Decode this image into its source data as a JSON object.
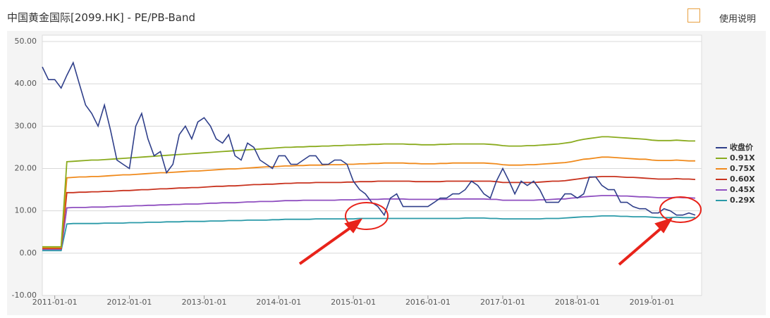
{
  "header": {
    "title": "中国黄金国际[2099.HK] - PE/PB-Band",
    "help": "使用说明"
  },
  "chart_data": {
    "type": "line",
    "x": [
      "2010-11-01",
      "2010-12-01",
      "2011-01-01",
      "2011-02-01",
      "2011-03-01",
      "2011-04-01",
      "2011-05-01",
      "2011-06-01",
      "2011-07-01",
      "2011-08-01",
      "2011-09-01",
      "2011-10-01",
      "2011-11-01",
      "2011-12-01",
      "2012-01-01",
      "2012-02-01",
      "2012-03-01",
      "2012-04-01",
      "2012-05-01",
      "2012-06-01",
      "2012-07-01",
      "2012-08-01",
      "2012-09-01",
      "2012-10-01",
      "2012-11-01",
      "2012-12-01",
      "2013-01-01",
      "2013-02-01",
      "2013-03-01",
      "2013-04-01",
      "2013-05-01",
      "2013-06-01",
      "2013-07-01",
      "2013-08-01",
      "2013-09-01",
      "2013-10-01",
      "2013-11-01",
      "2013-12-01",
      "2014-01-01",
      "2014-02-01",
      "2014-03-01",
      "2014-04-01",
      "2014-05-01",
      "2014-06-01",
      "2014-07-01",
      "2014-08-01",
      "2014-09-01",
      "2014-10-01",
      "2014-11-01",
      "2014-12-01",
      "2015-01-01",
      "2015-02-01",
      "2015-03-01",
      "2015-04-01",
      "2015-05-01",
      "2015-06-01",
      "2015-07-01",
      "2015-08-01",
      "2015-09-01",
      "2015-10-01",
      "2015-11-01",
      "2015-12-01",
      "2016-01-01",
      "2016-02-01",
      "2016-03-01",
      "2016-04-01",
      "2016-05-01",
      "2016-06-01",
      "2016-07-01",
      "2016-08-01",
      "2016-09-01",
      "2016-10-01",
      "2016-11-01",
      "2016-12-01",
      "2017-01-01",
      "2017-02-01",
      "2017-03-01",
      "2017-04-01",
      "2017-05-01",
      "2017-06-01",
      "2017-07-01",
      "2017-08-01",
      "2017-09-01",
      "2017-10-01",
      "2017-11-01",
      "2017-12-01",
      "2018-01-01",
      "2018-02-01",
      "2018-03-01",
      "2018-04-01",
      "2018-05-01",
      "2018-06-01",
      "2018-07-01",
      "2018-08-01",
      "2018-09-01",
      "2018-10-01",
      "2018-11-01",
      "2018-12-01",
      "2019-01-01",
      "2019-02-01",
      "2019-03-01",
      "2019-04-01",
      "2019-05-01",
      "2019-06-01",
      "2019-07-01",
      "2019-08-01"
    ],
    "series": [
      {
        "name": "收盘价",
        "color": "#2f3f8a",
        "values": [
          44,
          41,
          41,
          39,
          42,
          45,
          40,
          35,
          33,
          30,
          35,
          29,
          22,
          21,
          20,
          30,
          33,
          27,
          23,
          24,
          19,
          21,
          28,
          30,
          27,
          31,
          32,
          30,
          27,
          26,
          28,
          23,
          22,
          26,
          25,
          22,
          21,
          20,
          23,
          23,
          21,
          21,
          22,
          23,
          23,
          21,
          21,
          22,
          22,
          21,
          17,
          15,
          14,
          12,
          11,
          9,
          13,
          14,
          11,
          11,
          11,
          11,
          11,
          12,
          13,
          13,
          14,
          14,
          15,
          17,
          16,
          14,
          13,
          17,
          20,
          17,
          14,
          17,
          16,
          17,
          15,
          12,
          12,
          12,
          14,
          14,
          13,
          14,
          18,
          18,
          16,
          15,
          15,
          12,
          12,
          11,
          10.5,
          10.5,
          9.5,
          9.5,
          10.5,
          10,
          9,
          9,
          9.5,
          9
        ]
      },
      {
        "name": "0.91X",
        "color": "#8aab1e",
        "values": [
          1.5,
          1.5,
          1.5,
          1.5,
          21.6,
          21.7,
          21.8,
          21.9,
          22.0,
          22.0,
          22.1,
          22.2,
          22.3,
          22.4,
          22.5,
          22.6,
          22.7,
          22.8,
          22.9,
          23.0,
          23.1,
          23.2,
          23.3,
          23.4,
          23.5,
          23.6,
          23.7,
          23.8,
          23.9,
          24.0,
          24.1,
          24.2,
          24.3,
          24.4,
          24.5,
          24.6,
          24.7,
          24.8,
          24.9,
          25.0,
          25.0,
          25.1,
          25.1,
          25.2,
          25.2,
          25.3,
          25.3,
          25.4,
          25.4,
          25.5,
          25.5,
          25.6,
          25.6,
          25.7,
          25.7,
          25.8,
          25.8,
          25.8,
          25.8,
          25.7,
          25.7,
          25.6,
          25.6,
          25.6,
          25.7,
          25.7,
          25.8,
          25.8,
          25.8,
          25.8,
          25.8,
          25.8,
          25.7,
          25.6,
          25.4,
          25.3,
          25.3,
          25.3,
          25.4,
          25.4,
          25.5,
          25.6,
          25.7,
          25.8,
          26.0,
          26.2,
          26.6,
          26.9,
          27.1,
          27.3,
          27.5,
          27.5,
          27.4,
          27.3,
          27.2,
          27.1,
          27.0,
          26.9,
          26.7,
          26.6,
          26.6,
          26.6,
          26.7,
          26.6,
          26.5,
          26.5
        ]
      },
      {
        "name": "0.75X",
        "color": "#f08a1c",
        "values": [
          1.3,
          1.3,
          1.3,
          1.3,
          17.8,
          17.9,
          18.0,
          18.0,
          18.1,
          18.1,
          18.2,
          18.3,
          18.4,
          18.5,
          18.5,
          18.6,
          18.7,
          18.8,
          18.9,
          19.0,
          19.0,
          19.1,
          19.2,
          19.3,
          19.4,
          19.4,
          19.5,
          19.6,
          19.7,
          19.8,
          19.9,
          19.9,
          20.0,
          20.1,
          20.2,
          20.3,
          20.4,
          20.4,
          20.5,
          20.6,
          20.6,
          20.7,
          20.7,
          20.8,
          20.8,
          20.8,
          20.9,
          20.9,
          20.9,
          21.0,
          21.0,
          21.1,
          21.1,
          21.2,
          21.2,
          21.3,
          21.3,
          21.3,
          21.3,
          21.2,
          21.2,
          21.1,
          21.1,
          21.1,
          21.2,
          21.2,
          21.3,
          21.3,
          21.3,
          21.3,
          21.3,
          21.3,
          21.2,
          21.1,
          20.9,
          20.8,
          20.8,
          20.8,
          20.9,
          20.9,
          21.0,
          21.1,
          21.2,
          21.3,
          21.4,
          21.6,
          21.9,
          22.2,
          22.3,
          22.5,
          22.7,
          22.7,
          22.6,
          22.5,
          22.4,
          22.3,
          22.2,
          22.2,
          22.0,
          21.9,
          21.9,
          21.9,
          22.0,
          21.9,
          21.8,
          21.8
        ]
      },
      {
        "name": "0.60X",
        "color": "#c8321e",
        "values": [
          1.1,
          1.1,
          1.1,
          1.1,
          14.3,
          14.3,
          14.4,
          14.4,
          14.5,
          14.5,
          14.6,
          14.6,
          14.7,
          14.8,
          14.8,
          14.9,
          15.0,
          15.0,
          15.1,
          15.2,
          15.2,
          15.3,
          15.4,
          15.4,
          15.5,
          15.5,
          15.6,
          15.7,
          15.8,
          15.8,
          15.9,
          15.9,
          16.0,
          16.1,
          16.2,
          16.2,
          16.3,
          16.3,
          16.4,
          16.5,
          16.5,
          16.6,
          16.6,
          16.6,
          16.7,
          16.7,
          16.7,
          16.7,
          16.7,
          16.8,
          16.8,
          16.9,
          16.9,
          16.9,
          17.0,
          17.0,
          17.0,
          17.0,
          17.0,
          17.0,
          16.9,
          16.9,
          16.9,
          16.9,
          16.9,
          17.0,
          17.0,
          17.0,
          17.0,
          17.0,
          17.0,
          17.0,
          17.0,
          16.9,
          16.7,
          16.7,
          16.7,
          16.7,
          16.7,
          16.7,
          16.8,
          16.9,
          17.0,
          17.0,
          17.1,
          17.3,
          17.5,
          17.7,
          17.9,
          18.0,
          18.1,
          18.1,
          18.1,
          18.0,
          17.9,
          17.9,
          17.8,
          17.7,
          17.6,
          17.5,
          17.5,
          17.5,
          17.6,
          17.5,
          17.5,
          17.4
        ]
      },
      {
        "name": "0.45X",
        "color": "#8f4fc0",
        "values": [
          0.9,
          0.9,
          0.9,
          0.9,
          10.7,
          10.8,
          10.8,
          10.8,
          10.9,
          10.9,
          10.9,
          11.0,
          11.0,
          11.1,
          11.1,
          11.2,
          11.2,
          11.3,
          11.3,
          11.4,
          11.4,
          11.5,
          11.5,
          11.6,
          11.6,
          11.6,
          11.7,
          11.8,
          11.8,
          11.9,
          11.9,
          11.9,
          12.0,
          12.1,
          12.1,
          12.2,
          12.2,
          12.2,
          12.3,
          12.4,
          12.4,
          12.4,
          12.5,
          12.5,
          12.5,
          12.5,
          12.5,
          12.5,
          12.6,
          12.6,
          12.6,
          12.7,
          12.7,
          12.7,
          12.7,
          12.8,
          12.8,
          12.8,
          12.8,
          12.7,
          12.7,
          12.7,
          12.7,
          12.7,
          12.7,
          12.7,
          12.8,
          12.8,
          12.8,
          12.8,
          12.8,
          12.8,
          12.7,
          12.7,
          12.5,
          12.5,
          12.5,
          12.5,
          12.5,
          12.5,
          12.6,
          12.6,
          12.7,
          12.8,
          12.8,
          13.0,
          13.1,
          13.3,
          13.4,
          13.5,
          13.6,
          13.6,
          13.6,
          13.5,
          13.5,
          13.4,
          13.3,
          13.3,
          13.2,
          13.1,
          13.1,
          13.1,
          13.2,
          13.1,
          13.1,
          13.0
        ]
      },
      {
        "name": "0.29X",
        "color": "#2a9aa8",
        "values": [
          0.6,
          0.6,
          0.6,
          0.6,
          6.9,
          7.0,
          7.0,
          7.0,
          7.0,
          7.0,
          7.1,
          7.1,
          7.1,
          7.1,
          7.2,
          7.2,
          7.2,
          7.3,
          7.3,
          7.3,
          7.4,
          7.4,
          7.4,
          7.5,
          7.5,
          7.5,
          7.5,
          7.6,
          7.6,
          7.6,
          7.7,
          7.7,
          7.7,
          7.8,
          7.8,
          7.8,
          7.8,
          7.9,
          7.9,
          8.0,
          8.0,
          8.0,
          8.0,
          8.0,
          8.1,
          8.1,
          8.1,
          8.1,
          8.1,
          8.1,
          8.1,
          8.2,
          8.2,
          8.2,
          8.2,
          8.2,
          8.2,
          8.2,
          8.2,
          8.2,
          8.2,
          8.2,
          8.2,
          8.2,
          8.2,
          8.2,
          8.2,
          8.2,
          8.3,
          8.3,
          8.3,
          8.3,
          8.2,
          8.2,
          8.1,
          8.1,
          8.1,
          8.1,
          8.1,
          8.1,
          8.1,
          8.2,
          8.2,
          8.2,
          8.3,
          8.4,
          8.5,
          8.6,
          8.6,
          8.7,
          8.8,
          8.8,
          8.8,
          8.7,
          8.7,
          8.6,
          8.6,
          8.6,
          8.5,
          8.4,
          8.4,
          8.4,
          8.5,
          8.4,
          8.4,
          8.4
        ]
      }
    ],
    "xlim": [
      "2010-11-01",
      "2019-09-01"
    ],
    "xticks": [
      "2011-01-01",
      "2012-01-01",
      "2013-01-01",
      "2014-01-01",
      "2015-01-01",
      "2016-01-01",
      "2017-01-01",
      "2018-01-01",
      "2019-01-01"
    ],
    "ylim": [
      -10,
      50
    ],
    "yticks": [
      {
        "value": -10,
        "label": "-10.00"
      },
      {
        "value": 0,
        "label": "0.00"
      },
      {
        "value": 10,
        "label": "10.00"
      },
      {
        "value": 20,
        "label": "20.00"
      },
      {
        "value": 30,
        "label": "30.00"
      },
      {
        "value": 40,
        "label": "40.00"
      },
      {
        "value": 50,
        "label": "50.00"
      }
    ],
    "grid": true,
    "legend": "right"
  }
}
